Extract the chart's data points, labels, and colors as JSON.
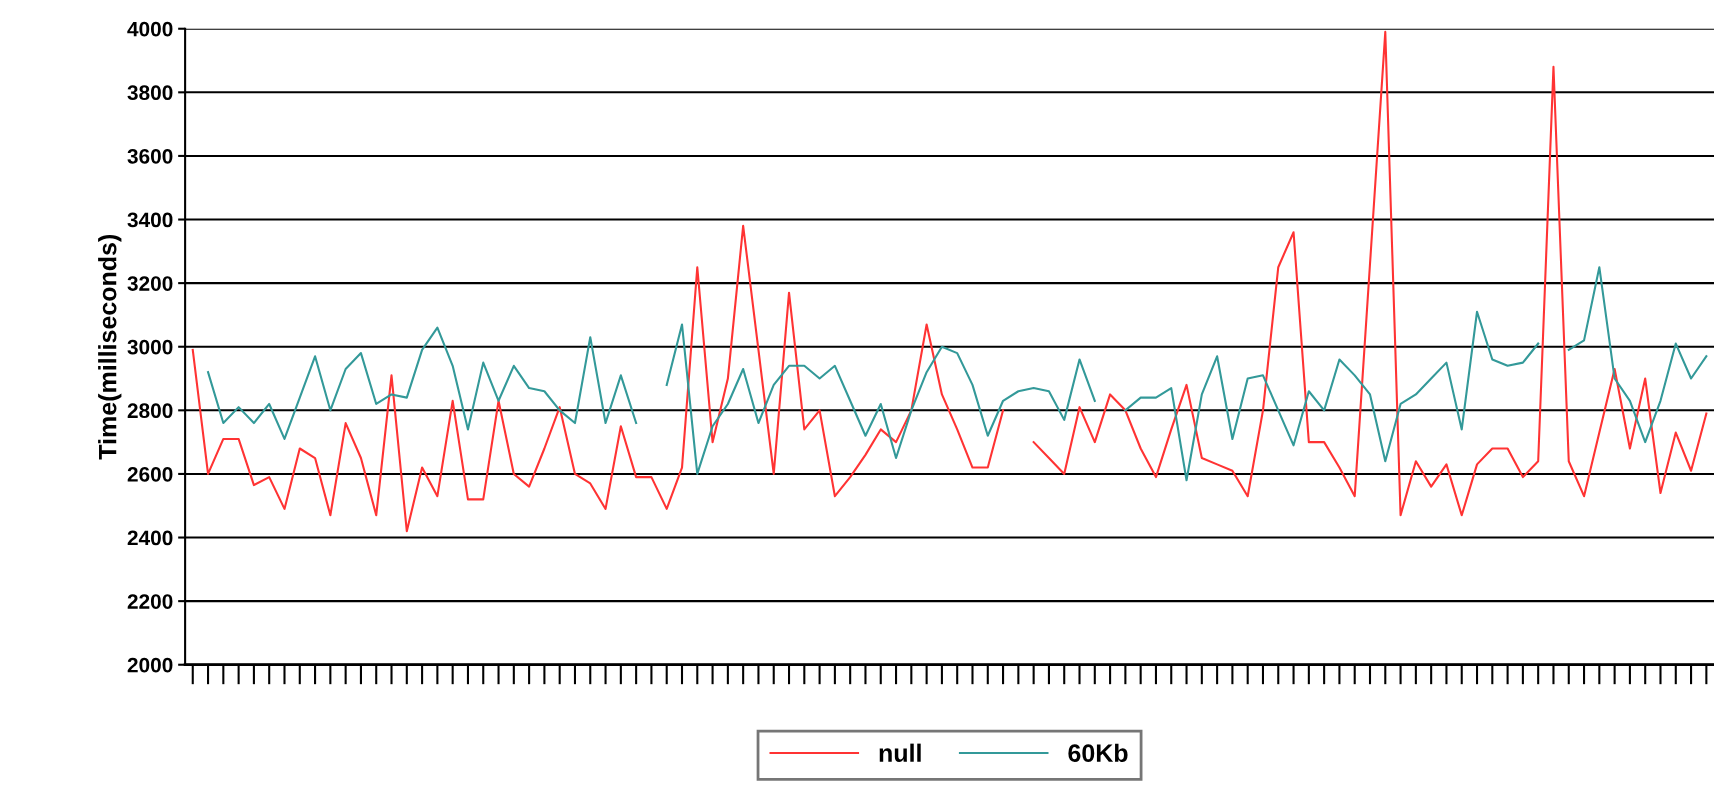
{
  "chart_data": {
    "type": "line",
    "ylabel": "Time(milliseconds)",
    "categories": [
      null,
      null,
      null,
      null,
      null,
      null,
      null,
      null,
      null,
      null,
      null,
      null,
      null,
      null,
      null,
      null,
      null,
      null,
      null,
      null,
      null,
      null,
      null,
      null,
      null,
      null,
      null,
      null,
      null,
      null,
      null,
      null,
      null,
      null,
      null,
      null,
      null,
      null,
      null,
      null,
      null,
      null,
      null,
      null,
      null,
      null,
      null,
      null,
      null,
      null,
      null,
      null,
      null,
      null,
      null,
      null,
      null,
      null,
      null,
      null,
      null,
      null,
      null,
      null,
      null,
      null,
      null,
      null,
      null,
      null,
      null,
      null,
      null,
      null,
      null,
      null,
      null,
      null,
      null,
      null,
      null,
      null,
      null,
      null,
      null,
      null,
      null,
      null,
      null,
      null,
      null,
      null,
      null,
      null,
      null,
      null,
      null,
      null,
      null,
      null
    ],
    "series": [
      {
        "name": "null",
        "color": "#ff3333",
        "values": [
          2990,
          2600,
          2710,
          2710,
          2565,
          2590,
          2490,
          2680,
          2650,
          2470,
          2760,
          2650,
          2470,
          2910,
          2420,
          2620,
          2530,
          2830,
          2520,
          2520,
          2830,
          2600,
          2560,
          2680,
          2810,
          2600,
          2570,
          2490,
          2750,
          2590,
          2590,
          2490,
          2620,
          3250,
          2700,
          2900,
          3380,
          2990,
          2600,
          3170,
          2740,
          2800,
          2530,
          2590,
          2660,
          2740,
          2700,
          2800,
          3070,
          2850,
          2740,
          2620,
          2620,
          2800,
          null,
          null,
          null,
          null,
          null,
          null,
          null,
          null,
          null,
          null,
          null,
          null,
          null,
          null,
          null,
          null,
          null,
          null,
          null,
          null,
          null,
          null,
          null,
          null,
          null,
          null,
          null,
          null,
          null,
          null,
          null,
          null,
          null,
          null,
          null,
          null,
          null,
          null,
          null,
          null,
          null,
          null,
          null,
          null,
          null,
          null
        ]
      },
      {
        "color": "#ff3333",
        "values": [
          null,
          null,
          null,
          null,
          null,
          null,
          null,
          null,
          null,
          null,
          null,
          null,
          null,
          null,
          null,
          null,
          null,
          null,
          null,
          null,
          null,
          null,
          null,
          null,
          null,
          null,
          null,
          null,
          null,
          null,
          null,
          null,
          null,
          null,
          null,
          null,
          null,
          null,
          null,
          null,
          null,
          null,
          null,
          null,
          null,
          null,
          null,
          null,
          null,
          null,
          null,
          null,
          null,
          null,
          null,
          2700,
          2650,
          2600,
          2810,
          2700,
          2850,
          2800,
          2680,
          2590,
          2740,
          2880,
          2650,
          2630,
          2610,
          2530,
          2800,
          3250,
          3360,
          2700,
          2700,
          2620,
          2530,
          3260,
          3990,
          2470,
          2640,
          2560,
          2630,
          2470,
          2630,
          2680,
          2680,
          2590,
          2640,
          3880,
          2640,
          2530,
          2730,
          2930,
          2680,
          2900,
          2540,
          2730,
          2610,
          2790
        ]
      },
      {
        "name": "60Kb",
        "color": "#339999",
        "values": [
          null,
          2920,
          2760,
          2810,
          2760,
          2820,
          2710,
          2840,
          2970,
          2800,
          2930,
          2980,
          2820,
          2850,
          2840,
          2990,
          3060,
          2940,
          2740,
          2950,
          2830,
          2940,
          2870,
          2860,
          2800,
          2760,
          3030,
          2760,
          2910,
          2760,
          null,
          null,
          null,
          null,
          null,
          null,
          null,
          null,
          null,
          null,
          null,
          null,
          null,
          null,
          null,
          null,
          null,
          null,
          null,
          null,
          null,
          null,
          null,
          null,
          null,
          null,
          null,
          null,
          null,
          null,
          null,
          null,
          null,
          null,
          null,
          null,
          null,
          null,
          null,
          null,
          null,
          null,
          null,
          null,
          null,
          null,
          null,
          null,
          null,
          null,
          null,
          null,
          null,
          null,
          null,
          null,
          null,
          null,
          null,
          null,
          null,
          null,
          null,
          null,
          null,
          null,
          null,
          null,
          null,
          null
        ]
      },
      {
        "color": "#339999",
        "values": [
          null,
          null,
          null,
          null,
          null,
          null,
          null,
          null,
          null,
          null,
          null,
          null,
          null,
          null,
          null,
          null,
          null,
          null,
          null,
          null,
          null,
          null,
          null,
          null,
          null,
          null,
          null,
          null,
          null,
          null,
          null,
          2880,
          3070,
          2600,
          2750,
          2820,
          2930,
          2760,
          2880,
          2940,
          2940,
          2900,
          2940,
          2830,
          2720,
          2820,
          2650,
          2800,
          2920,
          3000,
          2980,
          2880,
          2720,
          2830,
          2860,
          2870,
          2860,
          2770,
          2960,
          2830,
          null,
          null,
          null,
          null,
          null,
          null,
          null,
          null,
          null,
          null,
          null,
          null,
          null,
          null,
          null,
          null,
          null,
          null,
          null,
          null,
          null,
          null,
          null,
          null,
          null,
          null,
          null,
          null,
          null,
          null,
          null,
          null,
          null,
          null,
          null,
          null,
          null,
          null,
          null,
          null
        ]
      },
      {
        "color": "#339999",
        "values": [
          null,
          null,
          null,
          null,
          null,
          null,
          null,
          null,
          null,
          null,
          null,
          null,
          null,
          null,
          null,
          null,
          null,
          null,
          null,
          null,
          null,
          null,
          null,
          null,
          null,
          null,
          null,
          null,
          null,
          null,
          null,
          null,
          null,
          null,
          null,
          null,
          null,
          null,
          null,
          null,
          null,
          null,
          null,
          null,
          null,
          null,
          null,
          null,
          null,
          null,
          null,
          null,
          null,
          null,
          null,
          null,
          null,
          null,
          null,
          null,
          null,
          2800,
          2840,
          2840,
          2870,
          2580,
          2850,
          2970,
          2710,
          2900,
          2910,
          2800,
          2690,
          2860,
          2800,
          2960,
          2910,
          2850,
          2640,
          2820,
          2850,
          2900,
          2950,
          2740,
          3110,
          2960,
          2940,
          2950,
          3010,
          null,
          null,
          null,
          null,
          null,
          null,
          null,
          null,
          null,
          null,
          null
        ]
      },
      {
        "color": "#339999",
        "values": [
          null,
          null,
          null,
          null,
          null,
          null,
          null,
          null,
          null,
          null,
          null,
          null,
          null,
          null,
          null,
          null,
          null,
          null,
          null,
          null,
          null,
          null,
          null,
          null,
          null,
          null,
          null,
          null,
          null,
          null,
          null,
          null,
          null,
          null,
          null,
          null,
          null,
          null,
          null,
          null,
          null,
          null,
          null,
          null,
          null,
          null,
          null,
          null,
          null,
          null,
          null,
          null,
          null,
          null,
          null,
          null,
          null,
          null,
          null,
          null,
          null,
          null,
          null,
          null,
          null,
          null,
          null,
          null,
          null,
          null,
          null,
          null,
          null,
          null,
          null,
          null,
          null,
          null,
          null,
          null,
          null,
          null,
          null,
          null,
          null,
          null,
          null,
          null,
          null,
          null,
          2990,
          3020,
          3250,
          2900,
          2830,
          2700,
          2830,
          3010,
          2900,
          2970
        ]
      }
    ],
    "ylim": [
      2000,
      4000
    ],
    "yticks": [
      2000,
      2200,
      2400,
      2600,
      2800,
      3000,
      3200,
      3400,
      3600,
      3800,
      4000
    ],
    "grid": "y",
    "legend": "bottom",
    "tick_labels": "y",
    "marker": "none",
    "line_style": "solid"
  }
}
